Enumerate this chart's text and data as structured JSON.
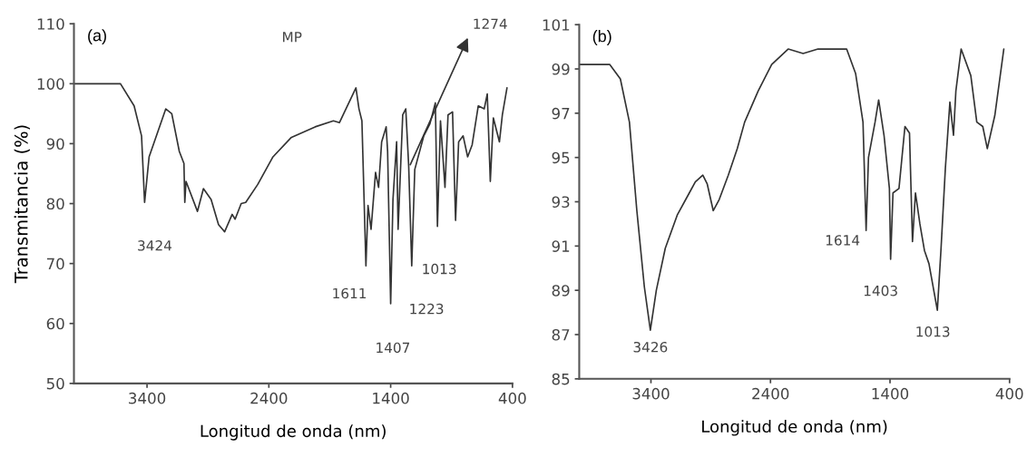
{
  "chart_data": [
    {
      "type": "line",
      "title": "(a)",
      "xlabel": "Longitud de onda (nm)",
      "ylabel": "Transmitancia (%)",
      "xlim": [
        4000,
        400
      ],
      "xticks": [
        3400,
        2400,
        1400,
        400
      ],
      "ylim": [
        50,
        110
      ],
      "yticks": [
        50,
        60,
        70,
        80,
        90,
        100,
        110
      ],
      "grid": false,
      "legend": false,
      "marker": "none",
      "line_style": "solid",
      "annotations": [
        "MP",
        "3424",
        "1611",
        "1407",
        "1223",
        "1013",
        {
          "text": "1274",
          "x": 1239,
          "y": 86.5
        }
      ],
      "series": [
        {
          "color": "#333333",
          "x": [
            4000,
            3618,
            3506,
            3445,
            3420,
            3383,
            3246,
            3197,
            3135,
            3097,
            3090,
            3080,
            2986,
            2937,
            2874,
            2813,
            2763,
            2701,
            2677,
            2627,
            2590,
            2491,
            2366,
            2218,
            2020,
            1870,
            1821,
            1685,
            1660,
            1636,
            1603,
            1586,
            1561,
            1524,
            1499,
            1474,
            1437,
            1425,
            1400,
            1381,
            1351,
            1339,
            1301,
            1276,
            1252,
            1227,
            1202,
            1128,
            1078,
            1033,
            1016,
            991,
            954,
            929,
            892,
            867,
            842,
            805,
            768,
            731,
            681,
            632,
            607,
            582,
            557,
            507,
            483,
            445
          ],
          "values": [
            100,
            100,
            96.3,
            91.3,
            80.2,
            87.8,
            95.8,
            95,
            88.7,
            86.7,
            80.2,
            83.7,
            78.7,
            82.5,
            80.7,
            76.5,
            75.3,
            78.2,
            77.4,
            80,
            80.2,
            83.2,
            87.8,
            91,
            92.8,
            93.8,
            93.5,
            99.3,
            95.8,
            93.8,
            69.6,
            79.7,
            75.7,
            85.2,
            82.7,
            90.3,
            92.8,
            88.7,
            63.3,
            80.7,
            90.3,
            75.7,
            94.8,
            95.8,
            86.3,
            69.6,
            85.7,
            91.3,
            93.3,
            96.8,
            76.2,
            93.8,
            82.7,
            94.8,
            95.3,
            77.2,
            90.3,
            91.3,
            87.8,
            89.8,
            96.3,
            95.8,
            98.3,
            83.7,
            94.3,
            90.3,
            94.8,
            99.3
          ]
        }
      ]
    },
    {
      "type": "line",
      "title": "(b)",
      "xlabel": "Longitud de onda (nm)",
      "xlim": [
        4000,
        400
      ],
      "xticks": [
        3400,
        2400,
        1400,
        400
      ],
      "ylim": [
        85,
        101
      ],
      "yticks": [
        85,
        87,
        89,
        91,
        93,
        95,
        97,
        99,
        101
      ],
      "grid": false,
      "legend": false,
      "marker": "none",
      "line_style": "solid",
      "annotations": [
        {
          "text": "3426",
          "x": 3405,
          "y": 87.2
        },
        {
          "text": "1614",
          "x": 1600,
          "y": 91.7
        },
        {
          "text": "1403",
          "x": 1395,
          "y": 90.4
        },
        {
          "text": "1013",
          "x": 1004,
          "y": 88.1
        }
      ],
      "series": [
        {
          "color": "#333333",
          "x": [
            4000,
            3744,
            3656,
            3580,
            3518,
            3455,
            3405,
            3355,
            3280,
            3180,
            3079,
            3029,
            2966,
            2929,
            2879,
            2829,
            2753,
            2678,
            2616,
            2503,
            2390,
            2252,
            2127,
            2002,
            1763,
            1688,
            1626,
            1600,
            1580,
            1525,
            1495,
            1450,
            1405,
            1395,
            1375,
            1325,
            1275,
            1237,
            1212,
            1187,
            1150,
            1112,
            1074,
            1004,
            974,
            937,
            899,
            869,
            849,
            805,
            724,
            674,
            624,
            586,
            523,
            448
          ],
          "values": [
            99.2,
            99.2,
            98.55,
            96.6,
            92.6,
            89.15,
            87.2,
            89.0,
            90.9,
            92.4,
            93.4,
            93.9,
            94.2,
            93.8,
            92.6,
            93.1,
            94.2,
            95.4,
            96.6,
            98.0,
            99.2,
            99.9,
            99.7,
            99.9,
            99.9,
            98.8,
            96.6,
            91.7,
            95.0,
            96.6,
            97.6,
            96.0,
            93.6,
            90.4,
            93.4,
            93.6,
            96.4,
            96.1,
            91.2,
            93.4,
            92.0,
            90.8,
            90.2,
            88.1,
            90.8,
            94.5,
            97.5,
            96.0,
            98.0,
            99.9,
            98.7,
            96.6,
            96.4,
            95.4,
            96.9,
            99.9
          ]
        }
      ]
    }
  ]
}
